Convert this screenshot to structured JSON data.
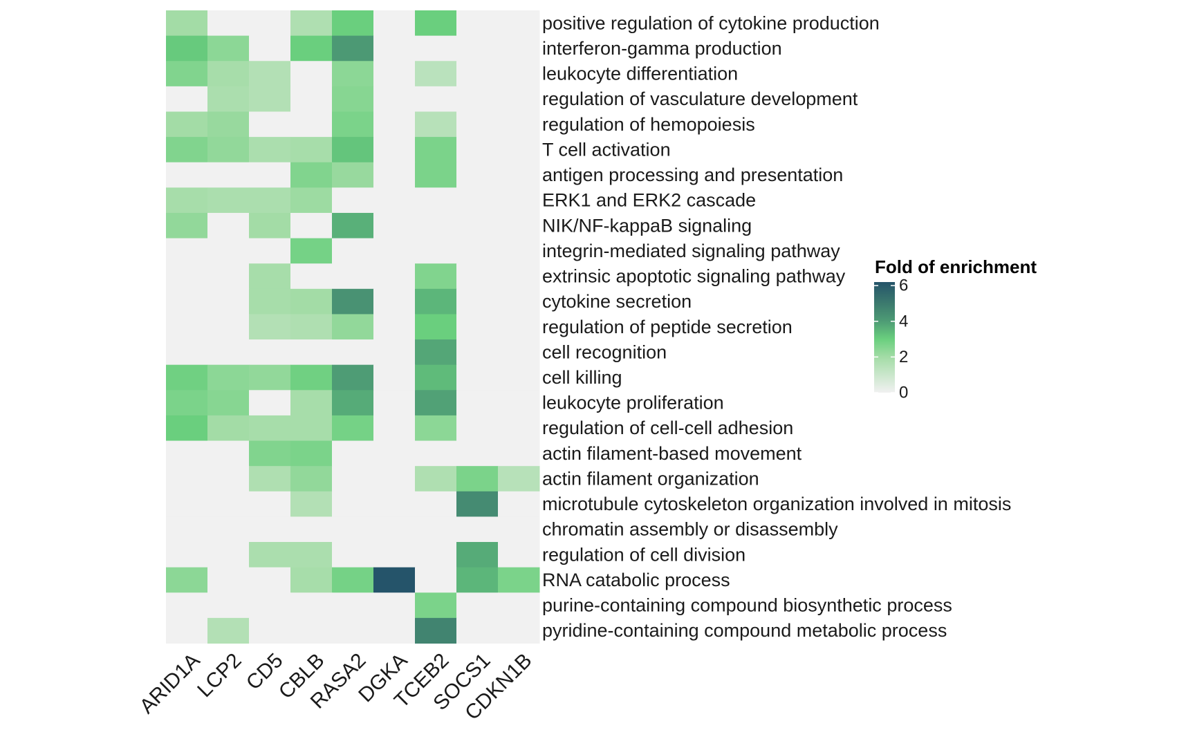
{
  "chart_data": {
    "type": "heatmap",
    "title": "",
    "xlabel": "",
    "ylabel": "",
    "columns": [
      "ARID1A",
      "LCP2",
      "CD5",
      "CBLB",
      "RASA2",
      "DGKA",
      "TCEB2",
      "SOCS1",
      "CDKN1B"
    ],
    "rows": [
      "positive regulation of cytokine production",
      "interferon-gamma production",
      "leukocyte differentiation",
      "regulation of vasculature development",
      "regulation of hemopoiesis",
      "T cell activation",
      "antigen processing and presentation",
      "ERK1 and ERK2 cascade",
      "NIK/NF-kappaB signaling",
      "integrin-mediated signaling pathway",
      "extrinsic apoptotic signaling pathway",
      "cytokine secretion",
      "regulation of peptide secretion",
      "cell recognition",
      "cell killing",
      "leukocyte proliferation",
      "regulation of cell-cell adhesion",
      "actin filament-based movement",
      "actin filament organization",
      "microtubule cytoskeleton organization involved in mitosis",
      "chromatin assembly or disassembly",
      "regulation of cell division",
      "RNA catabolic process",
      "purine-containing compound biosynthetic process",
      "pyridine-containing compound metabolic process"
    ],
    "values": [
      [
        2.0,
        0,
        0,
        1.7,
        3.0,
        0,
        3.0,
        0,
        0
      ],
      [
        3.1,
        2.4,
        0,
        3.0,
        4.1,
        0,
        0,
        0,
        0
      ],
      [
        2.6,
        1.9,
        1.6,
        0,
        2.4,
        0,
        1.4,
        0,
        0
      ],
      [
        0,
        1.8,
        1.6,
        0,
        2.5,
        0,
        0,
        0,
        0
      ],
      [
        2.0,
        2.2,
        0,
        0,
        2.7,
        0,
        1.5,
        0,
        0
      ],
      [
        2.6,
        2.3,
        1.8,
        1.9,
        3.2,
        0,
        2.7,
        0,
        0
      ],
      [
        0,
        0,
        0,
        2.6,
        2.2,
        0,
        2.7,
        0,
        0
      ],
      [
        1.9,
        1.8,
        1.8,
        2.1,
        0,
        0,
        0,
        0,
        0
      ],
      [
        2.3,
        0,
        2.0,
        0,
        3.6,
        0,
        0,
        0,
        0
      ],
      [
        0,
        0,
        0,
        2.8,
        0,
        0,
        0,
        0,
        0
      ],
      [
        0,
        0,
        1.9,
        0,
        0,
        0,
        2.6,
        0,
        0
      ],
      [
        0,
        0,
        1.9,
        2.0,
        4.3,
        0,
        3.5,
        0,
        0
      ],
      [
        0,
        0,
        1.6,
        1.7,
        2.3,
        0,
        3.0,
        0,
        0
      ],
      [
        0,
        0,
        0,
        0,
        0,
        0,
        3.8,
        0,
        0
      ],
      [
        2.9,
        2.4,
        2.3,
        2.9,
        4.0,
        0,
        3.4,
        0,
        0
      ],
      [
        2.7,
        2.5,
        0,
        1.9,
        3.7,
        0,
        3.9,
        0,
        0
      ],
      [
        3.0,
        2.0,
        1.9,
        1.9,
        2.8,
        0,
        2.4,
        0,
        0
      ],
      [
        0,
        0,
        2.6,
        2.7,
        0,
        0,
        0,
        0,
        0
      ],
      [
        0,
        0,
        1.7,
        2.3,
        0,
        0,
        1.7,
        2.7,
        1.5
      ],
      [
        0,
        0,
        0,
        1.6,
        0,
        0,
        0,
        4.5,
        0
      ],
      [
        0,
        0,
        0,
        0,
        0,
        0,
        0,
        0,
        0
      ],
      [
        0,
        0,
        1.8,
        1.8,
        0,
        0,
        0,
        3.7,
        0
      ],
      [
        2.4,
        0,
        0,
        1.9,
        2.8,
        6.2,
        0,
        3.5,
        2.7
      ],
      [
        0,
        0,
        0,
        0,
        0,
        0,
        2.7,
        0,
        0
      ],
      [
        0,
        1.6,
        0,
        0,
        0,
        0,
        4.7,
        0,
        0
      ]
    ],
    "color_scale": {
      "min": 0,
      "max": 6.2,
      "stops": [
        {
          "value": 0,
          "color": "#f1f1f1"
        },
        {
          "value": 2,
          "color": "#a3dca6"
        },
        {
          "value": 3,
          "color": "#6acf7e"
        },
        {
          "value": 4,
          "color": "#4e9c75"
        },
        {
          "value": 5,
          "color": "#3c7a6e"
        },
        {
          "value": 6.2,
          "color": "#25546a"
        }
      ]
    },
    "legend": {
      "title": "Fold of enrichment",
      "ticks": [
        0,
        2,
        4,
        6
      ],
      "position": "right"
    },
    "grid": false
  }
}
